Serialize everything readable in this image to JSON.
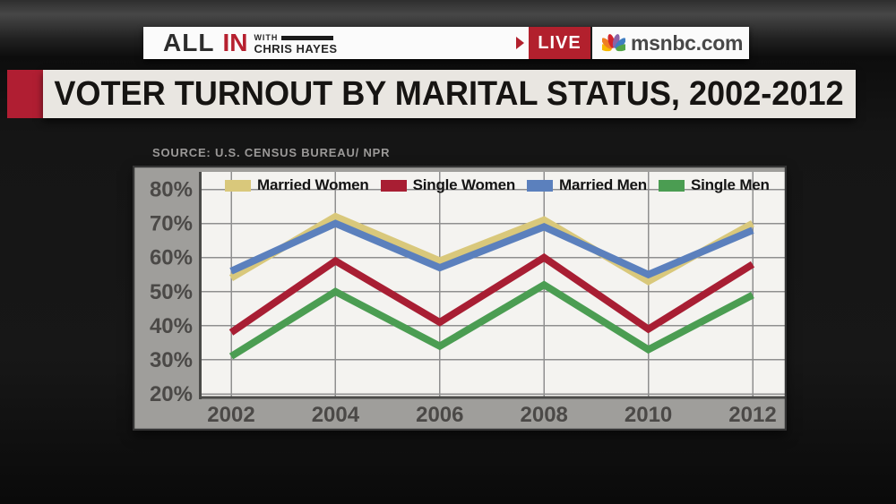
{
  "header": {
    "logo": {
      "all": "ALL",
      "in": "IN",
      "with": "WITH",
      "host": "CHRIS HAYES"
    },
    "live_label": "LIVE",
    "network_label": "msnbc.com"
  },
  "banner": {
    "title": "VOTER TURNOUT BY MARITAL STATUS, 2002-2012"
  },
  "chart": {
    "source": "SOURCE: U.S. CENSUS BUREAU/ NPR"
  },
  "chart_data": {
    "type": "line",
    "title": "VOTER TURNOUT BY MARITAL STATUS, 2002-2012",
    "source": "SOURCE: U.S. CENSUS BUREAU/ NPR",
    "x": [
      "2002",
      "2004",
      "2006",
      "2008",
      "2010",
      "2012"
    ],
    "series": [
      {
        "name": "Married Women",
        "color": "#d9c87b",
        "values": [
          54,
          72,
          59,
          71,
          53,
          70
        ]
      },
      {
        "name": "Single Women",
        "color": "#a81e33",
        "values": [
          38,
          59,
          41,
          60,
          39,
          58
        ]
      },
      {
        "name": "Married Men",
        "color": "#5b80bd",
        "values": [
          56,
          70,
          57,
          69,
          55,
          68
        ]
      },
      {
        "name": "Single Men",
        "color": "#4b9d52",
        "values": [
          31,
          50,
          34,
          52,
          33,
          49
        ]
      }
    ],
    "ylim": [
      20,
      80
    ],
    "yticks": [
      20,
      30,
      40,
      50,
      60,
      70,
      80
    ],
    "ytick_suffix": "%",
    "grid": true,
    "legend_position": "top"
  },
  "colors": {
    "accent_red": "#b01e32",
    "live_red": "#b2202d",
    "banner_bg": "#e9e6e1",
    "banner_text": "#161412",
    "logo_dark": "#2d2d2d",
    "logo_red": "#b6202f",
    "msnbc_text": "#484848",
    "source_text": "#9b9998",
    "chart_frame": "#9f9e9b",
    "plot_bg": "#f4f3f0",
    "grid": "#8f8f8f",
    "axis": "#4a4a48",
    "axis_text": "#4b4947",
    "legend_text": "#141414",
    "peacock": [
      "#f7b800",
      "#ef7d23",
      "#d2242c",
      "#8b63a6",
      "#3f7dc1",
      "#52a447"
    ]
  }
}
